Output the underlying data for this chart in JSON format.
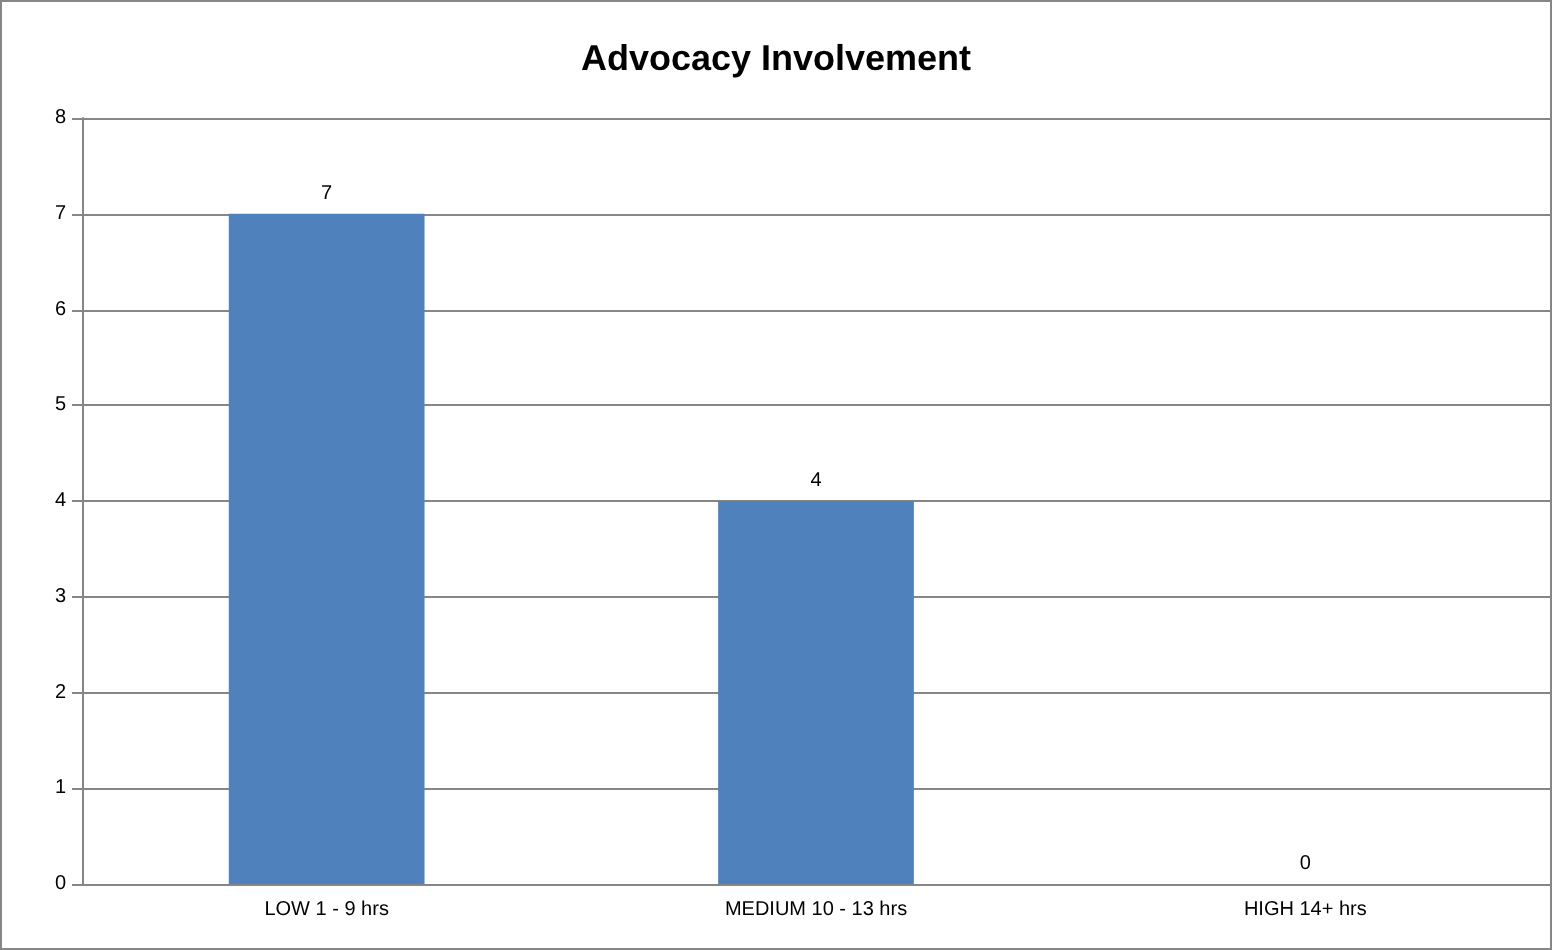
{
  "chart_data": {
    "type": "bar",
    "title": "Advocacy Involvement",
    "categories": [
      "LOW 1 - 9 hrs",
      "MEDIUM 10 - 13 hrs",
      "HIGH 14+ hrs"
    ],
    "values": [
      7,
      4,
      0
    ],
    "color": "#4f81bd",
    "ylim": [
      0,
      8
    ],
    "yticks": [
      0,
      1,
      2,
      3,
      4,
      5,
      6,
      7,
      8
    ],
    "grid": "y",
    "data_labels": true
  }
}
